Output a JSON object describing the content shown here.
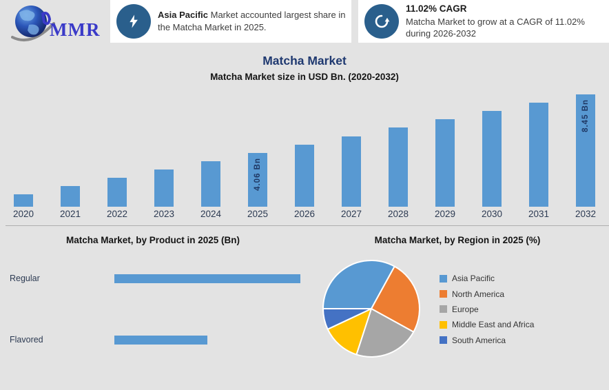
{
  "header": {
    "logo_text": "MMR",
    "callout1": {
      "icon": "lightning-bolt-icon",
      "highlight": "Asia Pacific",
      "text_rest": " Market accounted largest share in the Matcha Market in 2025."
    },
    "callout2": {
      "icon": "growth-cycle-icon",
      "title": "11.02% CAGR",
      "text": "Matcha Market to grow at a CAGR of 11.02% during 2026-2032"
    }
  },
  "page": {
    "title": "Matcha Market",
    "subtitle": "Matcha Market size in USD Bn. (2020-2032)"
  },
  "colors": {
    "background": "#e3e3e3",
    "card_background": "#ffffff",
    "icon_circle": "#2a5f8c",
    "bar_blue": "#5899d2",
    "title_navy": "#1f3970",
    "axis_text": "#2c3a52",
    "data_label_navy": "#1f3864",
    "divider": "#aeaeae",
    "logo_blue": "#3a3ac8"
  },
  "chart_data": [
    {
      "type": "bar",
      "title": "Matcha Market size in USD Bn. (2020-2032)",
      "unit": "USD Bn",
      "categories": [
        "2020",
        "2021",
        "2022",
        "2023",
        "2024",
        "2025",
        "2026",
        "2027",
        "2028",
        "2029",
        "2030",
        "2031",
        "2032"
      ],
      "values": [
        0.93,
        1.55,
        2.18,
        2.81,
        3.43,
        4.06,
        4.69,
        5.31,
        5.94,
        6.57,
        7.19,
        7.82,
        8.45
      ],
      "data_labels": [
        null,
        null,
        null,
        null,
        null,
        "4.06 Bn",
        null,
        null,
        null,
        null,
        null,
        null,
        "8.45 Bn"
      ],
      "bar_color": "#5899d2",
      "ylim": [
        0,
        8.8
      ],
      "grid": false,
      "legend_position": "none"
    },
    {
      "type": "bar",
      "orientation": "horizontal",
      "title": "Matcha Market, by Product in 2025 (Bn)",
      "unit": "USD Bn",
      "categories": [
        "Regular",
        "Flavored"
      ],
      "values": [
        2.7,
        1.35
      ],
      "bar_color": "#5899d2",
      "xlim": [
        0,
        3
      ],
      "grid": false,
      "legend_position": "none"
    },
    {
      "type": "pie",
      "title": "Matcha Market, by Region in 2025 (%)",
      "categories": [
        "Asia Pacific",
        "North America",
        "Europe",
        "Middle East and Africa",
        "South America"
      ],
      "values": [
        33,
        25,
        22,
        13,
        7
      ],
      "colors": [
        "#5899d2",
        "#ed7d31",
        "#a6a6a6",
        "#ffc000",
        "#4472c4"
      ],
      "start_angle_deg": 270,
      "direction": "clockwise",
      "legend_position": "right"
    }
  ]
}
